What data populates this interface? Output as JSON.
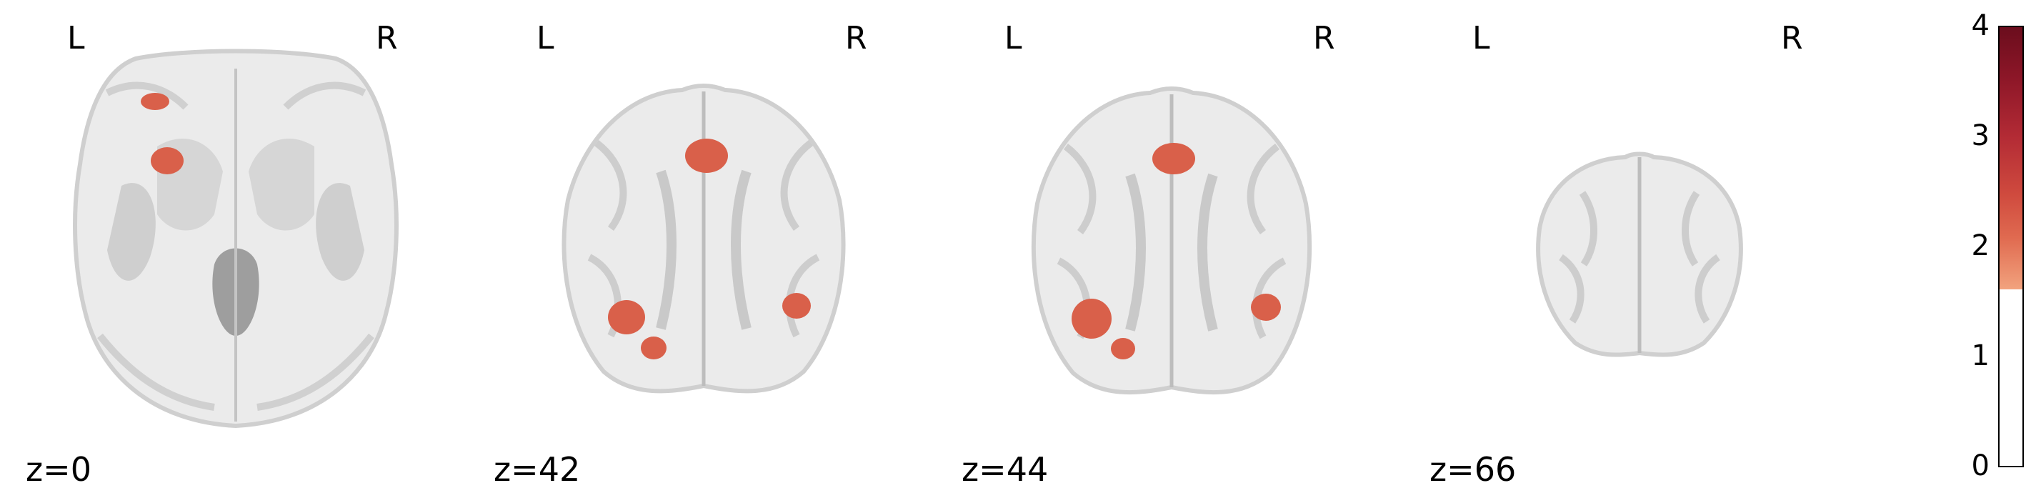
{
  "panels": [
    {
      "left_label": "L",
      "right_label": "R",
      "slice_label": "z=0"
    },
    {
      "left_label": "L",
      "right_label": "R",
      "slice_label": "z=42"
    },
    {
      "left_label": "L",
      "right_label": "R",
      "slice_label": "z=44"
    },
    {
      "left_label": "L",
      "right_label": "R",
      "slice_label": "z=66"
    }
  ],
  "colorbar": {
    "ticks": [
      "4",
      "3",
      "2",
      "1",
      "0"
    ],
    "threshold": 1.6,
    "max": 4,
    "colors": {
      "low": "#f2a37e",
      "mid": "#d65a45",
      "high": "#6b0d1d"
    }
  },
  "colors": {
    "brain_light": "#ececec",
    "brain_gray": "#bdbdbd",
    "blob": "#d9604a"
  }
}
